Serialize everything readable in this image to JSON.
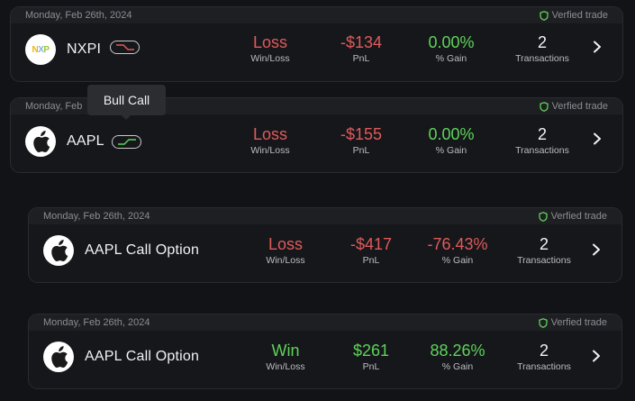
{
  "tooltip": {
    "text": "Bull Call"
  },
  "trades": [
    {
      "date": "Monday, Feb 26th, 2024",
      "verified": "Verfied trade",
      "logo": "nxp-logo",
      "logo_text": "NXP",
      "ticker": "NXPI",
      "strategy_icon": "bear-strategy-icon",
      "result": "Loss",
      "result_label": "Win/Loss",
      "pnl": "-$134",
      "pnl_label": "PnL",
      "gain": "0.00%",
      "gain_label": "% Gain",
      "transactions": "2",
      "transactions_label": "Transactions",
      "colors": {
        "result": "#e05a5a",
        "pnl": "#e05a5a",
        "gain": "#5fd25a"
      }
    },
    {
      "date": "Monday, Feb",
      "verified": "Verfied trade",
      "logo": "apple-logo",
      "ticker": "AAPL",
      "strategy_icon": "bull-call-strategy-icon",
      "result": "Loss",
      "result_label": "Win/Loss",
      "pnl": "-$155",
      "pnl_label": "PnL",
      "gain": "0.00%",
      "gain_label": "% Gain",
      "transactions": "2",
      "transactions_label": "Transactions",
      "colors": {
        "result": "#e05a5a",
        "pnl": "#e05a5a",
        "gain": "#5fd25a"
      }
    },
    {
      "date": "Monday, Feb 26th, 2024",
      "verified": "Verfied trade",
      "logo": "apple-logo",
      "ticker": "AAPL Call Option",
      "result": "Loss",
      "result_label": "Win/Loss",
      "pnl": "-$417",
      "pnl_label": "PnL",
      "gain": "-76.43%",
      "gain_label": "% Gain",
      "transactions": "2",
      "transactions_label": "Transactions",
      "colors": {
        "result": "#e05a5a",
        "pnl": "#e05a5a",
        "gain": "#e05a5a"
      }
    },
    {
      "date": "Monday, Feb 26th, 2024",
      "verified": "Verfied trade",
      "logo": "apple-logo",
      "ticker": "AAPL Call Option",
      "result": "Win",
      "result_label": "Win/Loss",
      "pnl": "$261",
      "pnl_label": "PnL",
      "gain": "88.26%",
      "gain_label": "% Gain",
      "transactions": "2",
      "transactions_label": "Transactions",
      "colors": {
        "result": "#5fd25a",
        "pnl": "#5fd25a",
        "gain": "#5fd25a"
      }
    }
  ],
  "colors": {
    "background": "#121316",
    "card": "#16171b",
    "loss": "#e05a5a",
    "win": "#5fd25a"
  }
}
